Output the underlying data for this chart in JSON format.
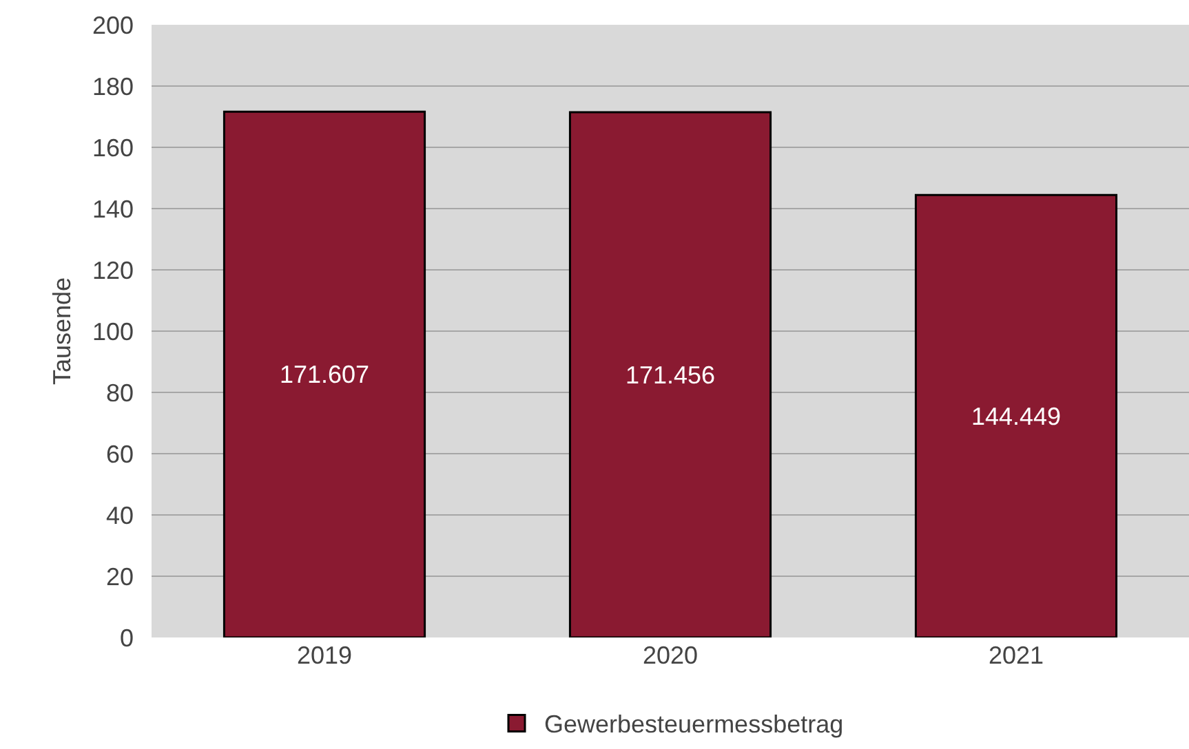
{
  "chart_data": {
    "type": "bar",
    "ylabel": "Tausende",
    "categories": [
      "2019",
      "2020",
      "2021"
    ],
    "series": [
      {
        "name": "Gewerbesteuermessbetrag",
        "color": "#8a1a31",
        "values": [
          171.607,
          171.456,
          144.449
        ]
      }
    ],
    "ylim": [
      0,
      200
    ],
    "yticks": [
      0,
      20,
      40,
      60,
      80,
      100,
      120,
      140,
      160,
      180,
      200
    ],
    "grid": "y",
    "legend": "bottom",
    "data_labels": true
  }
}
